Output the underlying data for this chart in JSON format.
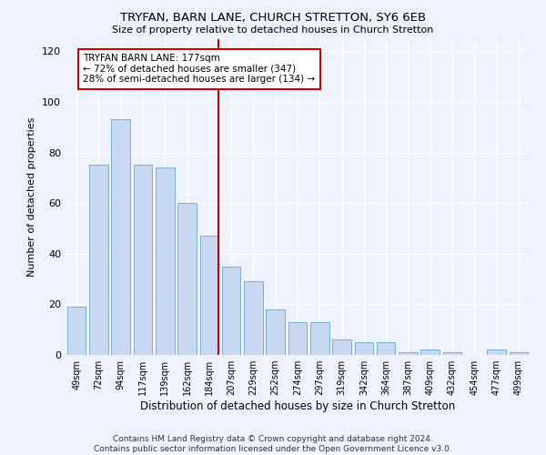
{
  "title": "TRYFAN, BARN LANE, CHURCH STRETTON, SY6 6EB",
  "subtitle": "Size of property relative to detached houses in Church Stretton",
  "xlabel": "Distribution of detached houses by size in Church Stretton",
  "ylabel": "Number of detached properties",
  "bar_labels": [
    "49sqm",
    "72sqm",
    "94sqm",
    "117sqm",
    "139sqm",
    "162sqm",
    "184sqm",
    "207sqm",
    "229sqm",
    "252sqm",
    "274sqm",
    "297sqm",
    "319sqm",
    "342sqm",
    "364sqm",
    "387sqm",
    "409sqm",
    "432sqm",
    "454sqm",
    "477sqm",
    "499sqm"
  ],
  "bar_values": [
    19,
    75,
    93,
    75,
    74,
    60,
    47,
    35,
    29,
    18,
    13,
    13,
    6,
    5,
    5,
    1,
    2,
    1,
    0,
    2,
    1
  ],
  "bar_color": "#c8d8f0",
  "bar_edge_color": "#7bafd4",
  "vline_x_idx": 6,
  "vline_color": "#cc0000",
  "annotation_title": "TRYFAN BARN LANE: 177sqm",
  "annotation_line1": "← 72% of detached houses are smaller (347)",
  "annotation_line2": "28% of semi-detached houses are larger (134) →",
  "annotation_box_color": "#cc0000",
  "ylim": [
    0,
    125
  ],
  "yticks": [
    0,
    20,
    40,
    60,
    80,
    100,
    120
  ],
  "background_color": "#eef2fc",
  "footer": "Contains HM Land Registry data © Crown copyright and database right 2024.\nContains public sector information licensed under the Open Government Licence v3.0."
}
